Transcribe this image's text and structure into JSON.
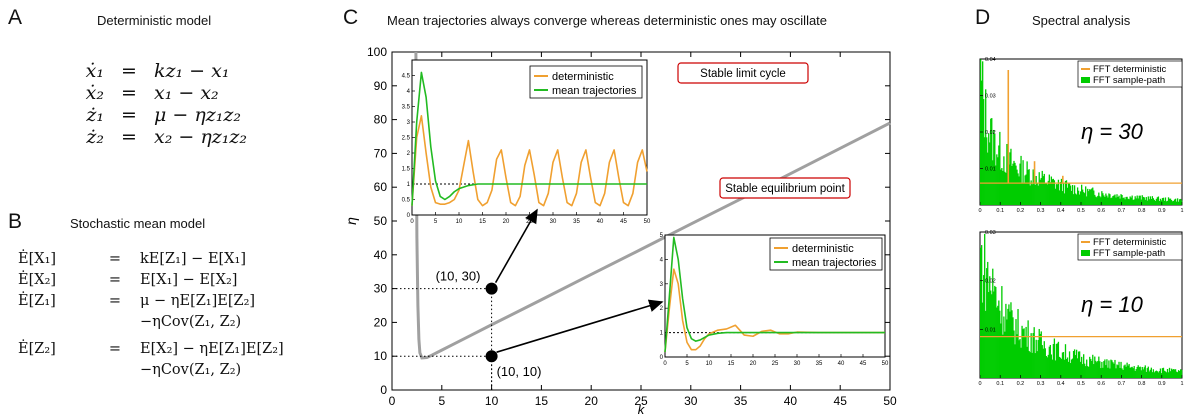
{
  "panel_a": {
    "label": "A",
    "title": "Deterministic model",
    "equations": [
      {
        "lhs": "ẋ₁",
        "op": "=",
        "rhs": "kz₁ − x₁"
      },
      {
        "lhs": "ẋ₂",
        "op": "=",
        "rhs": "x₁ − x₂"
      },
      {
        "lhs": "ż₁",
        "op": "=",
        "rhs": "μ − ηz₁z₂"
      },
      {
        "lhs": "ż₂",
        "op": "=",
        "rhs": "x₂ − ηz₁z₂"
      }
    ]
  },
  "panel_b": {
    "label": "B",
    "title": "Stochastic mean model",
    "equations": [
      {
        "lhs": "Ė[X₁]",
        "op": "=",
        "rhs": "kE[Z₁] − E[X₁]"
      },
      {
        "lhs": "Ė[X₂]",
        "op": "=",
        "rhs": "E[X₁] − E[X₂]"
      },
      {
        "lhs": "Ė[Z₁]",
        "op": "=",
        "rhs": "μ − ηE[Z₁]E[Z₂]"
      },
      {
        "lhs": "",
        "op": "",
        "rhs": "−ηCov(Z₁, Z₂)"
      },
      {
        "lhs": "Ė[Z₂]",
        "op": "=",
        "rhs": "E[X₂] − ηE[Z₁]E[Z₂]"
      },
      {
        "lhs": "",
        "op": "",
        "rhs": "−ηCov(Z₁, Z₂)"
      }
    ]
  },
  "panel_c": {
    "label": "C",
    "title": "Mean trajectories always converge whereas deterministic ones may oscillate",
    "chart_data": {
      "type": "line",
      "xlabel": "k",
      "ylabel": "η",
      "xlim": [
        0,
        50
      ],
      "ylim": [
        0,
        100
      ],
      "xticks": [
        0,
        5,
        10,
        15,
        20,
        25,
        30,
        35,
        40,
        45,
        50
      ],
      "yticks": [
        0,
        10,
        20,
        30,
        40,
        50,
        60,
        70,
        80,
        90,
        100
      ],
      "boundary_curve": {
        "x": [
          2.4,
          2.45,
          2.5,
          2.6,
          2.7,
          2.8,
          3.0,
          3.5,
          4.0,
          5,
          6,
          8,
          10,
          15,
          20,
          25,
          30,
          35,
          40,
          45,
          50
        ],
        "y": [
          100,
          70,
          45,
          25,
          15,
          11,
          9.5,
          9.6,
          10.3,
          11.8,
          13.3,
          16.3,
          19.3,
          26.7,
          34.2,
          41.6,
          49.1,
          56.5,
          64,
          71.5,
          79
        ],
        "color": "#a0a0a0"
      },
      "region_labels": [
        "Stable limit cycle",
        "Stable equilibrium point"
      ],
      "points": [
        {
          "k": 10,
          "eta": 30,
          "label": "(10, 30)"
        },
        {
          "k": 10,
          "eta": 10,
          "label": "(10, 10)"
        }
      ],
      "insets": [
        {
          "xlim": [
            0,
            50
          ],
          "ylim": [
            0,
            5
          ],
          "xticks": [
            0,
            5,
            10,
            15,
            20,
            25,
            30,
            35,
            40,
            45,
            50
          ],
          "yticks": [
            0,
            0.5,
            1,
            1.5,
            2,
            2.5,
            3,
            3.5,
            4,
            4.5
          ],
          "reference_y": 1,
          "series": [
            {
              "name": "deterministic",
              "color": "#f0a030",
              "x": [
                0,
                1,
                2,
                3,
                4,
                5,
                6,
                7,
                8,
                9,
                10,
                11,
                12,
                13,
                14,
                15,
                16,
                17,
                18,
                19,
                20,
                21,
                22,
                23,
                24,
                25,
                26,
                27,
                28,
                29,
                30,
                31,
                32,
                33,
                34,
                35,
                36,
                37,
                38,
                39,
                40,
                41,
                42,
                43,
                44,
                45,
                46,
                47,
                48,
                49,
                50
              ],
              "y": [
                0.3,
                2.5,
                3.2,
                2.0,
                0.9,
                0.4,
                0.35,
                0.35,
                0.4,
                0.5,
                0.8,
                1.6,
                2.4,
                1.4,
                0.5,
                0.3,
                0.4,
                0.8,
                1.8,
                2.1,
                1.2,
                0.4,
                0.3,
                0.6,
                1.6,
                2.1,
                1.3,
                0.4,
                0.3,
                0.7,
                1.7,
                2.1,
                1.2,
                0.4,
                0.3,
                0.7,
                1.7,
                2.1,
                1.2,
                0.4,
                0.3,
                0.7,
                1.7,
                2.1,
                1.2,
                0.4,
                0.3,
                0.7,
                1.7,
                2.1,
                1.4
              ]
            },
            {
              "name": "mean trajectories",
              "color": "#22bb22",
              "x": [
                0,
                1,
                2,
                3,
                4,
                5,
                6,
                7,
                8,
                9,
                10,
                12,
                14,
                16,
                18,
                20,
                25,
                30,
                35,
                40,
                45,
                50
              ],
              "y": [
                0.3,
                3.0,
                4.6,
                3.8,
                2.2,
                1.1,
                0.6,
                0.5,
                0.6,
                0.75,
                0.85,
                0.95,
                1.0,
                1.0,
                1.0,
                1.0,
                1.0,
                1.0,
                1.0,
                1.0,
                1.0,
                1.0
              ]
            }
          ]
        },
        {
          "xlim": [
            0,
            50
          ],
          "ylim": [
            0,
            5
          ],
          "xticks": [
            0,
            5,
            10,
            15,
            20,
            25,
            30,
            35,
            40,
            45,
            50
          ],
          "yticks": [
            0,
            1,
            2,
            3,
            4,
            5
          ],
          "reference_y": 1,
          "series": [
            {
              "name": "deterministic",
              "color": "#f0a030",
              "x": [
                0,
                1,
                2,
                3,
                4,
                5,
                6,
                7,
                8,
                9,
                10,
                12,
                14,
                16,
                18,
                20,
                22,
                24,
                26,
                28,
                30,
                35,
                40,
                45,
                50
              ],
              "y": [
                0.2,
                2.0,
                3.6,
                3.0,
                1.5,
                0.6,
                0.3,
                0.3,
                0.45,
                0.75,
                0.95,
                1.1,
                1.15,
                1.3,
                0.9,
                0.85,
                1.05,
                1.1,
                0.95,
                0.95,
                1.02,
                1.0,
                1.0,
                1.0,
                1.0
              ]
            },
            {
              "name": "mean trajectories",
              "color": "#22bb22",
              "x": [
                0,
                1,
                2,
                3,
                4,
                5,
                6,
                7,
                8,
                9,
                10,
                12,
                14,
                16,
                20,
                25,
                30,
                35,
                40,
                45,
                50
              ],
              "y": [
                0.2,
                2.5,
                4.9,
                4.0,
                2.4,
                1.2,
                0.75,
                0.65,
                0.7,
                0.8,
                0.9,
                0.97,
                1.0,
                1.0,
                1.0,
                1.0,
                1.0,
                1.0,
                1.0,
                1.0,
                1.0
              ]
            }
          ]
        }
      ]
    }
  },
  "panel_d": {
    "label": "D",
    "title": "Spectral analysis",
    "chart_data": [
      {
        "type": "bar",
        "annotation": "η = 30",
        "xlim": [
          0,
          1
        ],
        "ylim": [
          0,
          0.04
        ],
        "xticks": [
          "0",
          "0.1",
          "0.2",
          "0.3",
          "0.4",
          "0.5",
          "0.6",
          "0.7",
          "0.8",
          "0.9",
          "1"
        ],
        "yticks": [
          "0.01",
          "0.02",
          "0.03",
          "0.04"
        ],
        "series": [
          {
            "name": "FFT deterministic",
            "color": "#f0a030",
            "baseline": 0.006,
            "peaks": [
              {
                "x": 0.14,
                "y": 0.037
              },
              {
                "x": 0.27,
                "y": 0.012
              },
              {
                "x": 0.41,
                "y": 0.008
              }
            ]
          },
          {
            "name": "FFT sample-path",
            "color": "#00cc00",
            "x": [
              0.0,
              0.03,
              0.06,
              0.1,
              0.15,
              0.2,
              0.3,
              0.4,
              0.5,
              0.6,
              0.7,
              0.8,
              0.9,
              1.0
            ],
            "y": [
              0.039,
              0.026,
              0.02,
              0.016,
              0.013,
              0.011,
              0.008,
              0.006,
              0.0045,
              0.0035,
              0.0028,
              0.0022,
              0.0018,
              0.0015
            ]
          }
        ]
      },
      {
        "type": "bar",
        "annotation": "η = 10",
        "xlim": [
          0,
          1
        ],
        "ylim": [
          0,
          0.03
        ],
        "xticks": [
          "0",
          "0.1",
          "0.2",
          "0.3",
          "0.4",
          "0.5",
          "0.6",
          "0.7",
          "0.8",
          "0.9",
          "1"
        ],
        "yticks": [
          "0.01",
          "0.02",
          "0.03"
        ],
        "series": [
          {
            "name": "FFT deterministic",
            "color": "#f0a030",
            "baseline": 0.0085,
            "peaks": []
          },
          {
            "name": "FFT sample-path",
            "color": "#00cc00",
            "x": [
              0.0,
              0.03,
              0.06,
              0.1,
              0.15,
              0.2,
              0.3,
              0.4,
              0.5,
              0.6,
              0.7,
              0.8,
              0.9,
              1.0
            ],
            "y": [
              0.028,
              0.024,
              0.021,
              0.017,
              0.013,
              0.011,
              0.008,
              0.006,
              0.0045,
              0.0035,
              0.0028,
              0.0022,
              0.0018,
              0.0015
            ]
          }
        ]
      }
    ]
  }
}
